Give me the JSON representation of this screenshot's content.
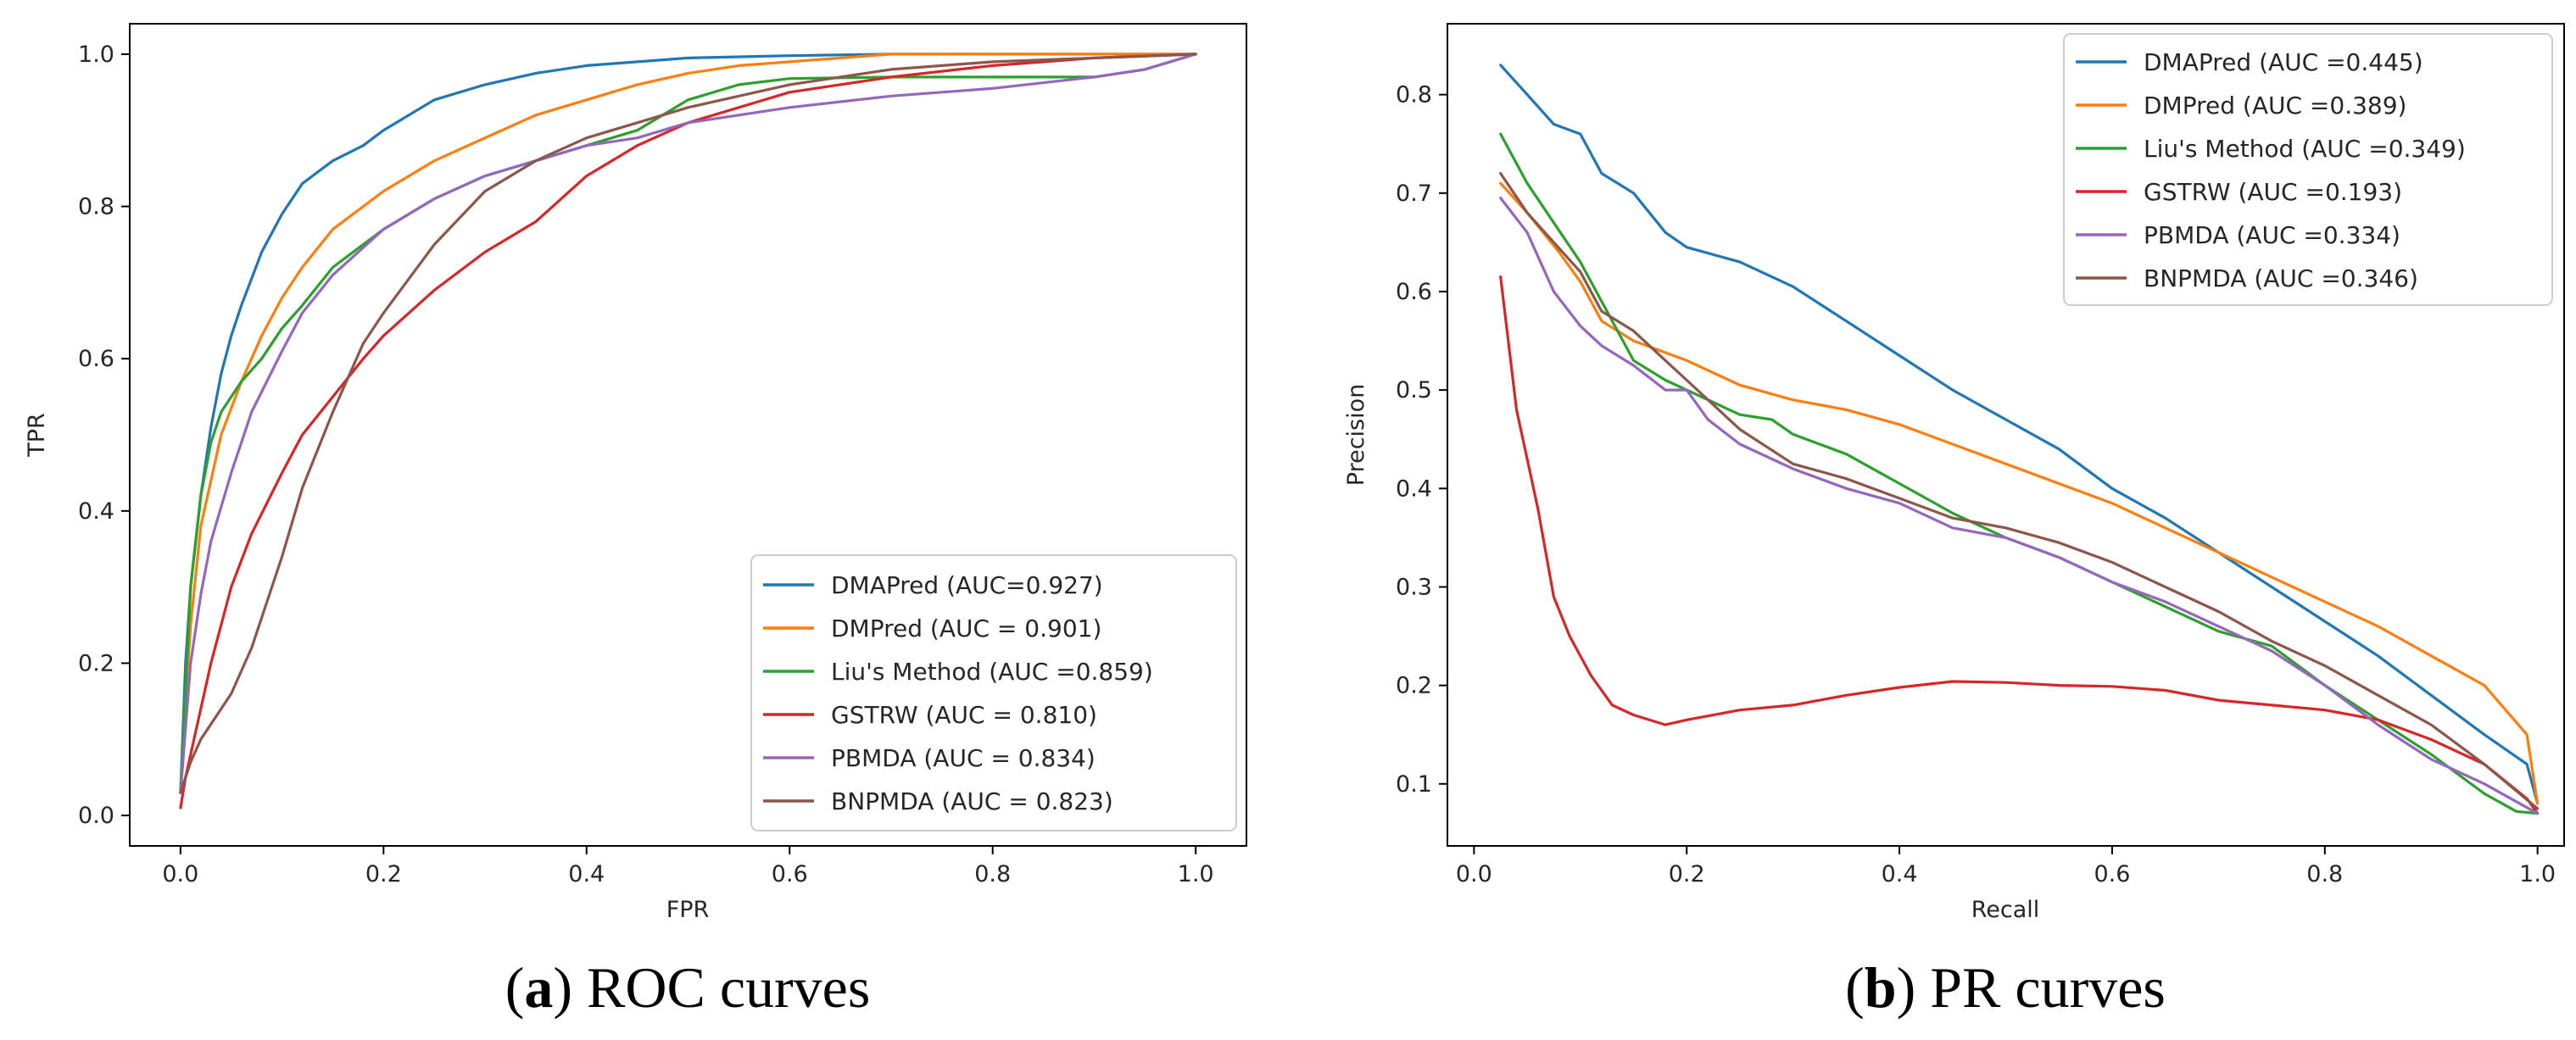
{
  "chart_data": [
    {
      "id": "roc",
      "type": "line",
      "caption_letter": "a",
      "caption_open": "(",
      "caption_close": ")",
      "caption_text": " ROC curves",
      "title": "",
      "xlabel": "FPR",
      "ylabel": "TPR",
      "xlim": [
        -0.05,
        1.05
      ],
      "ylim": [
        -0.04,
        1.04
      ],
      "xticks": [
        0.0,
        0.2,
        0.4,
        0.6,
        0.8,
        1.0
      ],
      "yticks": [
        0.0,
        0.2,
        0.4,
        0.6,
        0.8,
        1.0
      ],
      "xtick_labels": [
        "0.0",
        "0.2",
        "0.4",
        "0.6",
        "0.8",
        "1.0"
      ],
      "ytick_labels": [
        "0.0",
        "0.2",
        "0.4",
        "0.6",
        "0.8",
        "1.0"
      ],
      "grid": false,
      "legend_position": "lower-right",
      "series": [
        {
          "name": "DMAPred (AUC=0.927)",
          "color": "#1f77b4",
          "x": [
            0,
            0.005,
            0.01,
            0.02,
            0.03,
            0.04,
            0.05,
            0.06,
            0.08,
            0.1,
            0.12,
            0.15,
            0.18,
            0.2,
            0.25,
            0.3,
            0.35,
            0.4,
            0.45,
            0.5,
            0.6,
            0.7,
            0.8,
            0.9,
            1.0
          ],
          "y": [
            0.03,
            0.2,
            0.3,
            0.42,
            0.51,
            0.58,
            0.63,
            0.67,
            0.74,
            0.79,
            0.83,
            0.86,
            0.88,
            0.9,
            0.94,
            0.96,
            0.975,
            0.985,
            0.99,
            0.995,
            0.998,
            1.0,
            1.0,
            1.0,
            1.0
          ]
        },
        {
          "name": "DMPred (AUC = 0.901)",
          "color": "#ff7f0e",
          "x": [
            0,
            0.005,
            0.01,
            0.02,
            0.04,
            0.06,
            0.08,
            0.1,
            0.12,
            0.15,
            0.2,
            0.25,
            0.3,
            0.35,
            0.4,
            0.45,
            0.5,
            0.55,
            0.6,
            0.7,
            0.8,
            0.9,
            1.0
          ],
          "y": [
            0.03,
            0.15,
            0.25,
            0.38,
            0.5,
            0.57,
            0.63,
            0.68,
            0.72,
            0.77,
            0.82,
            0.86,
            0.89,
            0.92,
            0.94,
            0.96,
            0.975,
            0.985,
            0.99,
            1.0,
            1.0,
            1.0,
            1.0
          ]
        },
        {
          "name": "Liu's Method (AUC =0.859)",
          "color": "#2ca02c",
          "x": [
            0,
            0.01,
            0.02,
            0.03,
            0.04,
            0.05,
            0.06,
            0.08,
            0.1,
            0.12,
            0.15,
            0.2,
            0.25,
            0.3,
            0.35,
            0.4,
            0.45,
            0.5,
            0.55,
            0.6,
            0.7,
            0.8,
            0.9,
            0.95,
            1.0
          ],
          "y": [
            0.03,
            0.3,
            0.42,
            0.49,
            0.53,
            0.55,
            0.57,
            0.6,
            0.64,
            0.67,
            0.72,
            0.77,
            0.81,
            0.84,
            0.86,
            0.88,
            0.9,
            0.94,
            0.96,
            0.968,
            0.97,
            0.97,
            0.97,
            0.98,
            1.0
          ]
        },
        {
          "name": "GSTRW (AUC = 0.810)",
          "color": "#d62728",
          "x": [
            0,
            0.005,
            0.01,
            0.02,
            0.03,
            0.05,
            0.07,
            0.1,
            0.12,
            0.15,
            0.18,
            0.2,
            0.25,
            0.3,
            0.35,
            0.4,
            0.45,
            0.5,
            0.6,
            0.7,
            0.8,
            0.9,
            1.0
          ],
          "y": [
            0.01,
            0.05,
            0.08,
            0.14,
            0.2,
            0.3,
            0.37,
            0.45,
            0.5,
            0.55,
            0.6,
            0.63,
            0.69,
            0.74,
            0.78,
            0.84,
            0.88,
            0.91,
            0.95,
            0.97,
            0.985,
            0.995,
            1.0
          ]
        },
        {
          "name": "PBMDA (AUC = 0.834)",
          "color": "#9467bd",
          "x": [
            0,
            0.01,
            0.02,
            0.03,
            0.05,
            0.07,
            0.1,
            0.12,
            0.15,
            0.2,
            0.25,
            0.3,
            0.35,
            0.4,
            0.45,
            0.5,
            0.6,
            0.7,
            0.8,
            0.9,
            0.95,
            1.0
          ],
          "y": [
            0.03,
            0.2,
            0.29,
            0.36,
            0.45,
            0.53,
            0.61,
            0.66,
            0.71,
            0.77,
            0.81,
            0.84,
            0.86,
            0.88,
            0.89,
            0.91,
            0.93,
            0.945,
            0.955,
            0.97,
            0.98,
            1.0
          ]
        },
        {
          "name": "BNPMDA (AUC = 0.823)",
          "color": "#8c564b",
          "x": [
            0,
            0.01,
            0.02,
            0.03,
            0.05,
            0.07,
            0.1,
            0.12,
            0.15,
            0.18,
            0.2,
            0.25,
            0.3,
            0.35,
            0.4,
            0.45,
            0.5,
            0.6,
            0.7,
            0.8,
            0.9,
            1.0
          ],
          "y": [
            0.03,
            0.07,
            0.1,
            0.12,
            0.16,
            0.22,
            0.34,
            0.43,
            0.53,
            0.62,
            0.66,
            0.75,
            0.82,
            0.86,
            0.89,
            0.91,
            0.93,
            0.96,
            0.98,
            0.99,
            0.995,
            1.0
          ]
        }
      ]
    },
    {
      "id": "pr",
      "type": "line",
      "caption_letter": "b",
      "caption_open": "(",
      "caption_close": ")",
      "caption_text": " PR curves",
      "title": "",
      "xlabel": "Recall",
      "ylabel": "Precision",
      "xlim": [
        -0.025,
        1.025
      ],
      "ylim": [
        0.037,
        0.872
      ],
      "xticks": [
        0.0,
        0.2,
        0.4,
        0.6,
        0.8,
        1.0
      ],
      "yticks": [
        0.1,
        0.2,
        0.3,
        0.4,
        0.5,
        0.6,
        0.7,
        0.8
      ],
      "xtick_labels": [
        "0.0",
        "0.2",
        "0.4",
        "0.6",
        "0.8",
        "1.0"
      ],
      "ytick_labels": [
        "0.1",
        "0.2",
        "0.3",
        "0.4",
        "0.5",
        "0.6",
        "0.7",
        "0.8"
      ],
      "grid": false,
      "legend_position": "upper-right",
      "series": [
        {
          "name": "DMAPred (AUC =0.445)",
          "color": "#1f77b4",
          "x": [
            0.025,
            0.05,
            0.075,
            0.1,
            0.12,
            0.15,
            0.18,
            0.2,
            0.25,
            0.3,
            0.35,
            0.4,
            0.45,
            0.5,
            0.55,
            0.6,
            0.65,
            0.7,
            0.75,
            0.8,
            0.85,
            0.9,
            0.95,
            0.99,
            1.0
          ],
          "y": [
            0.83,
            0.8,
            0.77,
            0.76,
            0.72,
            0.7,
            0.66,
            0.645,
            0.63,
            0.605,
            0.57,
            0.535,
            0.5,
            0.47,
            0.44,
            0.4,
            0.37,
            0.335,
            0.3,
            0.265,
            0.23,
            0.19,
            0.15,
            0.12,
            0.08
          ]
        },
        {
          "name": "DMPred (AUC =0.389)",
          "color": "#ff7f0e",
          "x": [
            0.025,
            0.05,
            0.08,
            0.1,
            0.12,
            0.15,
            0.2,
            0.25,
            0.3,
            0.35,
            0.4,
            0.45,
            0.5,
            0.55,
            0.6,
            0.65,
            0.7,
            0.75,
            0.8,
            0.85,
            0.9,
            0.95,
            0.99,
            1.0
          ],
          "y": [
            0.71,
            0.68,
            0.64,
            0.61,
            0.57,
            0.55,
            0.53,
            0.505,
            0.49,
            0.48,
            0.465,
            0.445,
            0.425,
            0.405,
            0.385,
            0.36,
            0.335,
            0.31,
            0.285,
            0.26,
            0.23,
            0.2,
            0.15,
            0.08
          ]
        },
        {
          "name": "Liu's Method (AUC =0.349)",
          "color": "#2ca02c",
          "x": [
            0.025,
            0.05,
            0.075,
            0.1,
            0.12,
            0.15,
            0.18,
            0.2,
            0.25,
            0.28,
            0.3,
            0.35,
            0.4,
            0.45,
            0.5,
            0.55,
            0.6,
            0.65,
            0.7,
            0.75,
            0.8,
            0.85,
            0.9,
            0.95,
            0.98,
            1.0
          ],
          "y": [
            0.76,
            0.71,
            0.67,
            0.63,
            0.59,
            0.53,
            0.51,
            0.5,
            0.475,
            0.47,
            0.455,
            0.435,
            0.405,
            0.375,
            0.35,
            0.33,
            0.305,
            0.28,
            0.255,
            0.24,
            0.2,
            0.165,
            0.13,
            0.09,
            0.072,
            0.07
          ]
        },
        {
          "name": "GSTRW (AUC =0.193)",
          "color": "#d62728",
          "x": [
            0.025,
            0.04,
            0.06,
            0.075,
            0.09,
            0.11,
            0.13,
            0.15,
            0.18,
            0.2,
            0.25,
            0.3,
            0.35,
            0.4,
            0.45,
            0.5,
            0.55,
            0.6,
            0.65,
            0.7,
            0.75,
            0.8,
            0.85,
            0.9,
            0.95,
            0.99,
            1.0
          ],
          "y": [
            0.615,
            0.48,
            0.38,
            0.29,
            0.25,
            0.21,
            0.18,
            0.17,
            0.16,
            0.165,
            0.175,
            0.18,
            0.19,
            0.198,
            0.204,
            0.203,
            0.2,
            0.199,
            0.195,
            0.185,
            0.18,
            0.175,
            0.165,
            0.145,
            0.12,
            0.085,
            0.07
          ]
        },
        {
          "name": "PBMDA (AUC =0.334)",
          "color": "#9467bd",
          "x": [
            0.025,
            0.05,
            0.075,
            0.1,
            0.12,
            0.15,
            0.18,
            0.2,
            0.22,
            0.25,
            0.3,
            0.35,
            0.4,
            0.45,
            0.5,
            0.55,
            0.6,
            0.65,
            0.7,
            0.75,
            0.8,
            0.85,
            0.9,
            0.95,
            1.0
          ],
          "y": [
            0.695,
            0.66,
            0.6,
            0.565,
            0.545,
            0.525,
            0.5,
            0.5,
            0.47,
            0.445,
            0.42,
            0.4,
            0.385,
            0.36,
            0.35,
            0.33,
            0.305,
            0.285,
            0.26,
            0.235,
            0.2,
            0.16,
            0.125,
            0.1,
            0.07
          ]
        },
        {
          "name": "BNPMDA (AUC =0.346)",
          "color": "#8c564b",
          "x": [
            0.025,
            0.05,
            0.075,
            0.1,
            0.12,
            0.15,
            0.18,
            0.2,
            0.25,
            0.3,
            0.35,
            0.4,
            0.45,
            0.5,
            0.55,
            0.6,
            0.65,
            0.7,
            0.75,
            0.8,
            0.85,
            0.9,
            0.95,
            1.0
          ],
          "y": [
            0.72,
            0.68,
            0.65,
            0.62,
            0.58,
            0.56,
            0.53,
            0.51,
            0.46,
            0.425,
            0.41,
            0.39,
            0.37,
            0.36,
            0.345,
            0.325,
            0.3,
            0.275,
            0.245,
            0.22,
            0.19,
            0.16,
            0.12,
            0.075
          ]
        }
      ]
    }
  ]
}
